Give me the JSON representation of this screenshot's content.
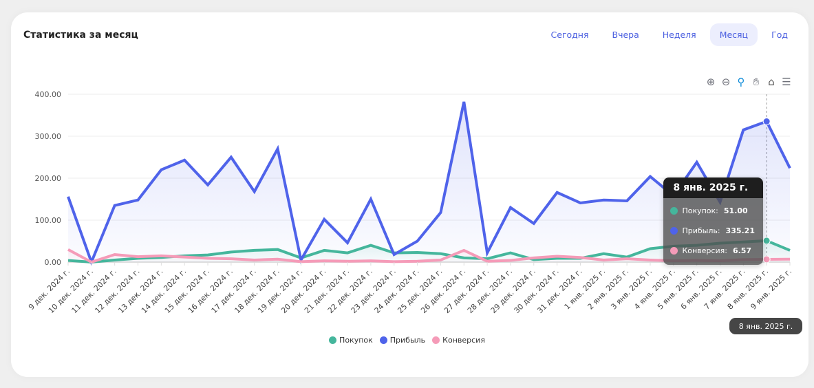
{
  "header": {
    "title": "Статистика за месяц"
  },
  "tabs": [
    {
      "label": "Сегодня"
    },
    {
      "label": "Вчера"
    },
    {
      "label": "Неделя"
    },
    {
      "label": "Месяц",
      "active": true
    },
    {
      "label": "Год"
    }
  ],
  "toolbar": {
    "icons": [
      "zoom-in-icon",
      "zoom-out-icon",
      "selection-zoom-icon",
      "pan-hand-icon",
      "reset-home-icon",
      "menu-icon"
    ]
  },
  "tooltip": {
    "title": "8 янв. 2025 г.",
    "rows": [
      {
        "label": "Покупок:",
        "value": "51.00"
      },
      {
        "label": "Прибыль:",
        "value": "335.21"
      },
      {
        "label": "Конверсия:",
        "value": "6.57"
      }
    ],
    "x_label": "8 янв. 2025 г."
  },
  "chart_data": {
    "type": "area",
    "ylim": [
      0,
      400
    ],
    "yticks": [
      "0.00",
      "100.00",
      "200.00",
      "300.00",
      "400.00"
    ],
    "grid": true,
    "legend_position": "bottom",
    "categories": [
      "9 дек. 2024 г.",
      "10 дек. 2024 г.",
      "11 дек. 2024 г.",
      "12 дек. 2024 г.",
      "13 дек. 2024 г.",
      "14 дек. 2024 г.",
      "15 дек. 2024 г.",
      "16 дек. 2024 г.",
      "17 дек. 2024 г.",
      "18 дек. 2024 г.",
      "19 дек. 2024 г.",
      "20 дек. 2024 г.",
      "21 дек. 2024 г.",
      "22 дек. 2024 г.",
      "23 дек. 2024 г.",
      "24 дек. 2024 г.",
      "25 дек. 2024 г.",
      "26 дек. 2024 г.",
      "27 дек. 2024 г.",
      "28 дек. 2024 г.",
      "29 дек. 2024 г.",
      "30 дек. 2024 г.",
      "31 дек. 2024 г.",
      "1 янв. 2025 г.",
      "2 янв. 2025 г.",
      "3 янв. 2025 г.",
      "4 янв. 2025 г.",
      "5 янв. 2025 г.",
      "6 янв. 2025 г.",
      "7 янв. 2025 г.",
      "8 янв. 2025 г.",
      "9 янв. 2025 г."
    ],
    "series": [
      {
        "name": "Покупок",
        "color": "#45b69c",
        "values": [
          4,
          0,
          5,
          9,
          11,
          15,
          17,
          24,
          28,
          30,
          10,
          28,
          22,
          40,
          22,
          23,
          20,
          10,
          8,
          22,
          6,
          9,
          9,
          20,
          12,
          32,
          38,
          40,
          45,
          48,
          51,
          28
        ]
      },
      {
        "name": "Прибыль",
        "color": "#4f63ea",
        "values": [
          156,
          0,
          135,
          148,
          220,
          243,
          184,
          250,
          168,
          270,
          5,
          102,
          46,
          150,
          18,
          50,
          118,
          382,
          22,
          130,
          92,
          166,
          141,
          148,
          146,
          204,
          158,
          238,
          143,
          315,
          335.21,
          224
        ]
      },
      {
        "name": "Конверсия",
        "color": "#f59bb8",
        "values": [
          30,
          0,
          18,
          13,
          15,
          12,
          9,
          8,
          5,
          7,
          1,
          3,
          2,
          3,
          1,
          2,
          5,
          28,
          2,
          4,
          10,
          14,
          11,
          5,
          8,
          5,
          3,
          4,
          3,
          6,
          6.57,
          7
        ]
      }
    ],
    "highlight_index": 30
  }
}
